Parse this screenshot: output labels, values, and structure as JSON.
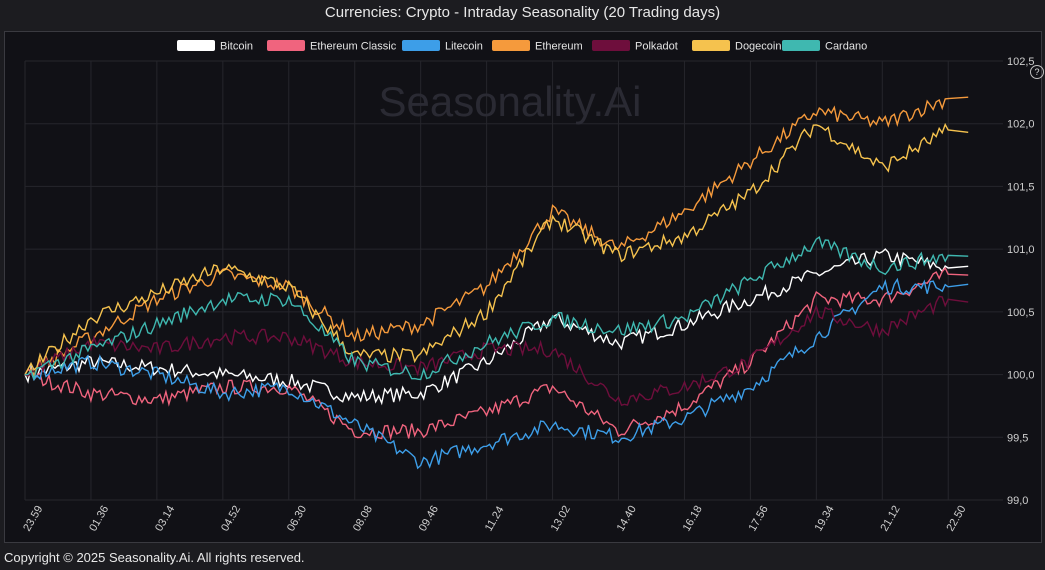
{
  "title": "Currencies: Crypto - Intraday Seasonality (20 Trading days)",
  "watermark": "Seasonality.Ai",
  "help_icon": "?",
  "footer": "Copyright © 2025 Seasonality.Ai. All rights reserved.",
  "chart_data": {
    "type": "line",
    "title": "Currencies: Crypto - Intraday Seasonality (20 Trading days)",
    "x": [
      "23.59",
      "01.36",
      "03.14",
      "04.52",
      "06.30",
      "08.08",
      "09.46",
      "11.24",
      "13.02",
      "14.40",
      "16.18",
      "17.56",
      "19.34",
      "21.12",
      "22.50"
    ],
    "ylim": [
      99.0,
      102.5
    ],
    "yticks": [
      "99,0",
      "99,5",
      "100,0",
      "100,5",
      "101,0",
      "101,5",
      "102,0",
      "102,5"
    ],
    "ytick_values": [
      99.0,
      99.5,
      100.0,
      100.5,
      101.0,
      101.5,
      102.0,
      102.5
    ],
    "grid": true,
    "legend_position": "top-center",
    "series": [
      {
        "name": "Bitcoin",
        "color": "#ffffff",
        "values": [
          100.0,
          100.1,
          100.05,
          100.0,
          99.95,
          99.82,
          99.85,
          100.1,
          100.45,
          100.25,
          100.4,
          100.6,
          100.8,
          100.95,
          100.85
        ]
      },
      {
        "name": "Ethereum Classic",
        "color": "#f0647e",
        "values": [
          100.0,
          99.85,
          99.8,
          99.9,
          99.9,
          99.55,
          99.55,
          99.7,
          99.9,
          99.55,
          99.75,
          100.1,
          100.6,
          100.6,
          100.8
        ]
      },
      {
        "name": "Litecoin",
        "color": "#3d9ee8",
        "values": [
          100.0,
          100.1,
          100.0,
          99.85,
          99.9,
          99.6,
          99.3,
          99.45,
          99.6,
          99.5,
          99.65,
          99.9,
          100.3,
          100.7,
          100.7
        ]
      },
      {
        "name": "Ethereum",
        "color": "#f59a3c",
        "values": [
          100.0,
          100.3,
          100.6,
          100.8,
          100.7,
          100.3,
          100.4,
          100.7,
          101.3,
          101.0,
          101.3,
          101.7,
          102.1,
          102.0,
          102.2
        ]
      },
      {
        "name": "Polkadot",
        "color": "#6e0e3c",
        "values": [
          100.0,
          100.25,
          100.2,
          100.3,
          100.3,
          100.1,
          100.05,
          100.2,
          100.2,
          99.8,
          99.9,
          100.1,
          100.5,
          100.35,
          100.6
        ]
      },
      {
        "name": "Dogecoin",
        "color": "#f5c24e",
        "values": [
          100.0,
          100.45,
          100.65,
          100.85,
          100.7,
          100.15,
          100.15,
          100.5,
          101.25,
          100.95,
          101.1,
          101.45,
          102.0,
          101.65,
          101.95
        ]
      },
      {
        "name": "Cardano",
        "color": "#3fb8b0",
        "values": [
          100.0,
          100.2,
          100.4,
          100.6,
          100.6,
          100.1,
          100.0,
          100.25,
          100.45,
          100.35,
          100.45,
          100.75,
          101.05,
          100.85,
          100.95
        ]
      }
    ]
  }
}
